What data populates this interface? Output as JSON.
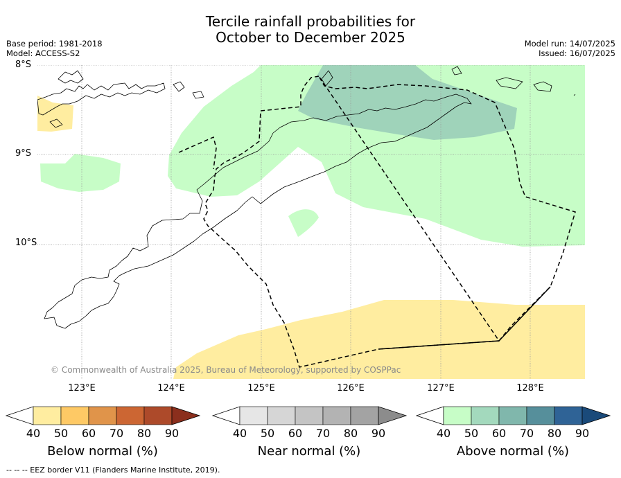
{
  "title": {
    "line1": "Tercile rainfall probabilities for",
    "line2": "October to December 2025"
  },
  "meta": {
    "base_period": "Base period: 1981-2018",
    "model": "Model: ACCESS-S2",
    "model_run": "Model run: 14/07/2025",
    "issued": "Issued: 16/07/2025"
  },
  "map": {
    "lat_labels": [
      "8°S",
      "9°S",
      "10°S"
    ],
    "lon_labels": [
      "123°E",
      "124°E",
      "125°E",
      "126°E",
      "127°E",
      "128°E"
    ],
    "copyright": "© Commonwealth of Australia 2025, Bureau of Meteorology, supported by COSPPac",
    "colors": {
      "below_50": "#ffeda0",
      "above_40": "#c7fdc7",
      "above_50": "#9fd3ba",
      "land_outline": "#000000",
      "grid": "#9a9a9a"
    }
  },
  "legend": {
    "ticks": [
      "40",
      "50",
      "60",
      "70",
      "80",
      "90"
    ],
    "below": {
      "label": "Below normal (%)",
      "colors": [
        "#ffeda0",
        "#fec965",
        "#e0944a",
        "#cc6633",
        "#ad4a2a",
        "#8b2f1d"
      ]
    },
    "near": {
      "label": "Near normal (%)",
      "colors": [
        "#e6e6e6",
        "#d6d6d6",
        "#c4c4c4",
        "#b3b3b3",
        "#a3a3a3",
        "#8c8c8c"
      ]
    },
    "above": {
      "label": "Above normal (%)",
      "colors": [
        "#c7fdc7",
        "#a3d9bd",
        "#80b7ac",
        "#568f9b",
        "#2f6396",
        "#1a4a7a"
      ]
    }
  },
  "footer": {
    "eez": "--  --  -- EEZ border V11 (Flanders Marine Institute, 2019)."
  }
}
